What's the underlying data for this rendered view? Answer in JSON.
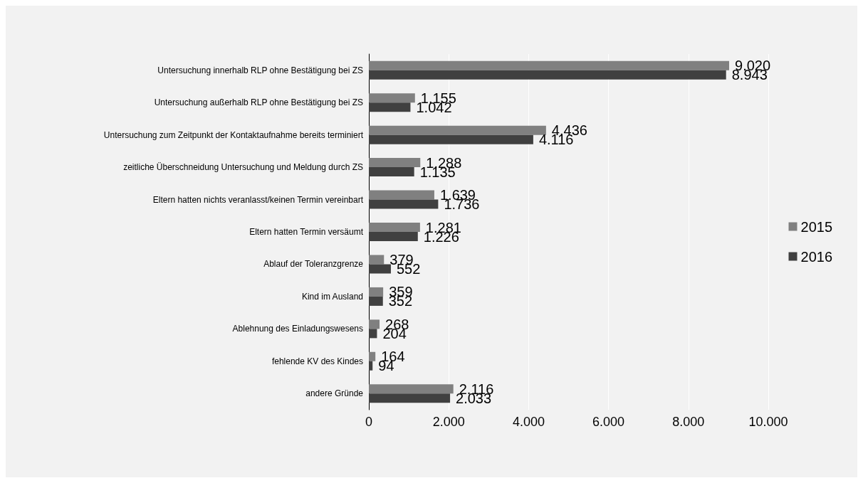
{
  "chart_data": {
    "type": "bar",
    "orientation": "horizontal",
    "categories": [
      "Untersuchung innerhalb RLP ohne Bestätigung bei ZS",
      "Untersuchung außerhalb RLP ohne Bestätigung bei ZS",
      "Untersuchung zum Zeitpunkt der Kontaktaufnahme bereits terminiert",
      "zeitliche Überschneidung Untersuchung und Meldung durch ZS",
      "Eltern hatten nichts veranlasst/keinen Termin vereinbart",
      "Eltern hatten Termin versäumt",
      "Ablauf der Toleranzgrenze",
      "Kind im Ausland",
      "Ablehnung des Einladungswesens",
      "fehlende KV des Kindes",
      "andere Gründe"
    ],
    "series": [
      {
        "name": "2015",
        "color": "#808080",
        "values": [
          9020,
          1155,
          4436,
          1288,
          1639,
          1281,
          379,
          359,
          268,
          164,
          2116
        ],
        "value_labels": [
          "9.020",
          "1.155",
          "4.436",
          "1.288",
          "1.639",
          "1.281",
          "379",
          "359",
          "268",
          "164",
          "2.116"
        ]
      },
      {
        "name": "2016",
        "color": "#404040",
        "values": [
          8943,
          1042,
          4116,
          1135,
          1736,
          1226,
          552,
          352,
          204,
          94,
          2033
        ],
        "value_labels": [
          "8.943",
          "1.042",
          "4.116",
          "1.135",
          "1.736",
          "1.226",
          "552",
          "352",
          "204",
          "94",
          "2.033"
        ]
      }
    ],
    "xlim": [
      0,
      10000
    ],
    "xticks": [
      {
        "value": 0,
        "label": "0"
      },
      {
        "value": 2000,
        "label": "2.000"
      },
      {
        "value": 4000,
        "label": "4.000"
      },
      {
        "value": 6000,
        "label": "6.000"
      },
      {
        "value": 8000,
        "label": "8.000"
      },
      {
        "value": 10000,
        "label": "10.000"
      }
    ],
    "grid": "x",
    "legend": "right"
  }
}
